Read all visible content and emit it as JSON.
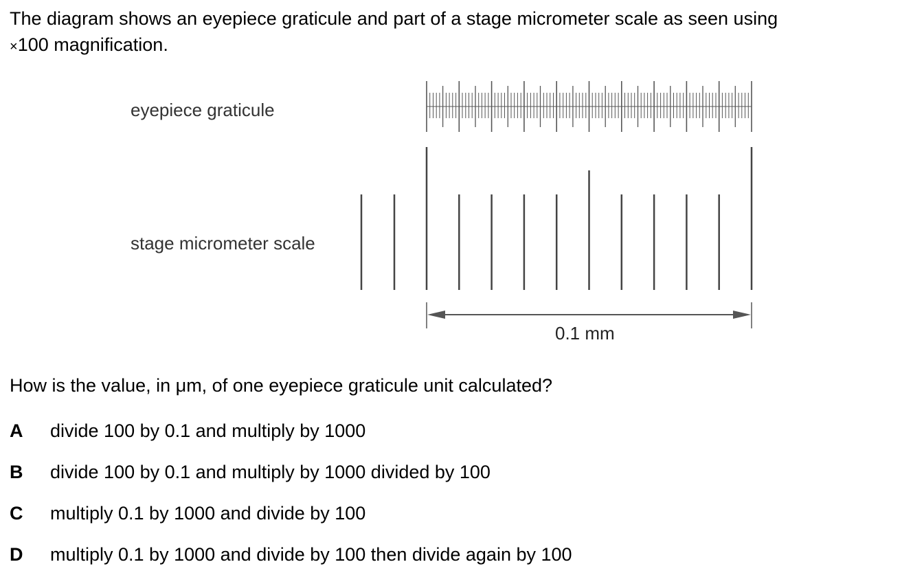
{
  "intro": {
    "line1": "The diagram shows an eyepiece graticule and part of a stage micrometer scale as seen using",
    "line2_symbol": "×",
    "line2_rest": "100 magnification."
  },
  "figure": {
    "eyepiece_label": "eyepiece graticule",
    "stage_label": "stage micrometer scale",
    "scale_label": "0.1 mm"
  },
  "question": {
    "prefix": "How is the value, in ",
    "unit_symbol": "μ",
    "suffix": "m, of one eyepiece graticule unit calculated?"
  },
  "options": [
    {
      "letter": "A",
      "text": "divide 100 by 0.1 and multiply by 1000"
    },
    {
      "letter": "B",
      "text": "divide 100 by 0.1 and multiply by 1000 divided by 100"
    },
    {
      "letter": "C",
      "text": "multiply 0.1 by 1000 and divide by 100"
    },
    {
      "letter": "D",
      "text": "multiply 0.1 by 1000 and divide by 100 then divide again by 100"
    }
  ]
}
